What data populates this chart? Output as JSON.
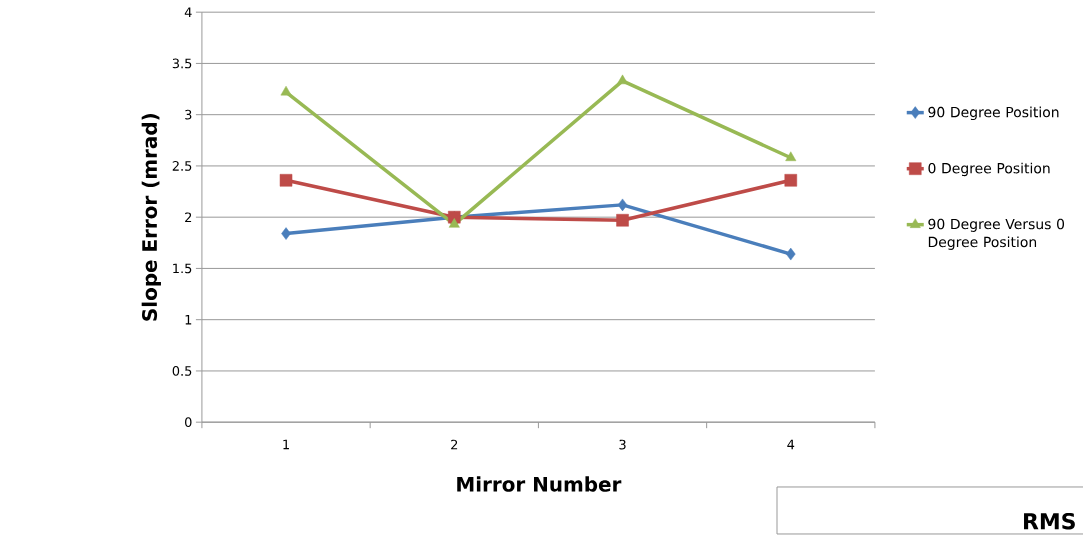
{
  "chart_data": {
    "type": "line",
    "xlabel": "Mirror Number",
    "ylabel": "Slope Error (mrad)",
    "categories": [
      "1",
      "2",
      "3",
      "4"
    ],
    "series": [
      {
        "name": "90 Degree Position",
        "color": "#4a7ebb",
        "marker": "diamond",
        "values": [
          1.84,
          2.0,
          2.12,
          1.64
        ]
      },
      {
        "name": "0 Degree Position",
        "color": "#be4b48",
        "marker": "square",
        "values": [
          2.36,
          2.0,
          1.97,
          2.36
        ]
      },
      {
        "name": "90 Degree Versus 0 Degree Position",
        "color": "#98b954",
        "marker": "triangle",
        "values": [
          3.22,
          1.93,
          3.33,
          2.58
        ]
      }
    ],
    "ylim": [
      0,
      4
    ],
    "yticks": [
      0,
      0.5,
      1,
      1.5,
      2,
      2.5,
      3,
      3.5,
      4
    ],
    "grid": "y",
    "legend": "right",
    "annotations": [
      "RMS"
    ]
  }
}
